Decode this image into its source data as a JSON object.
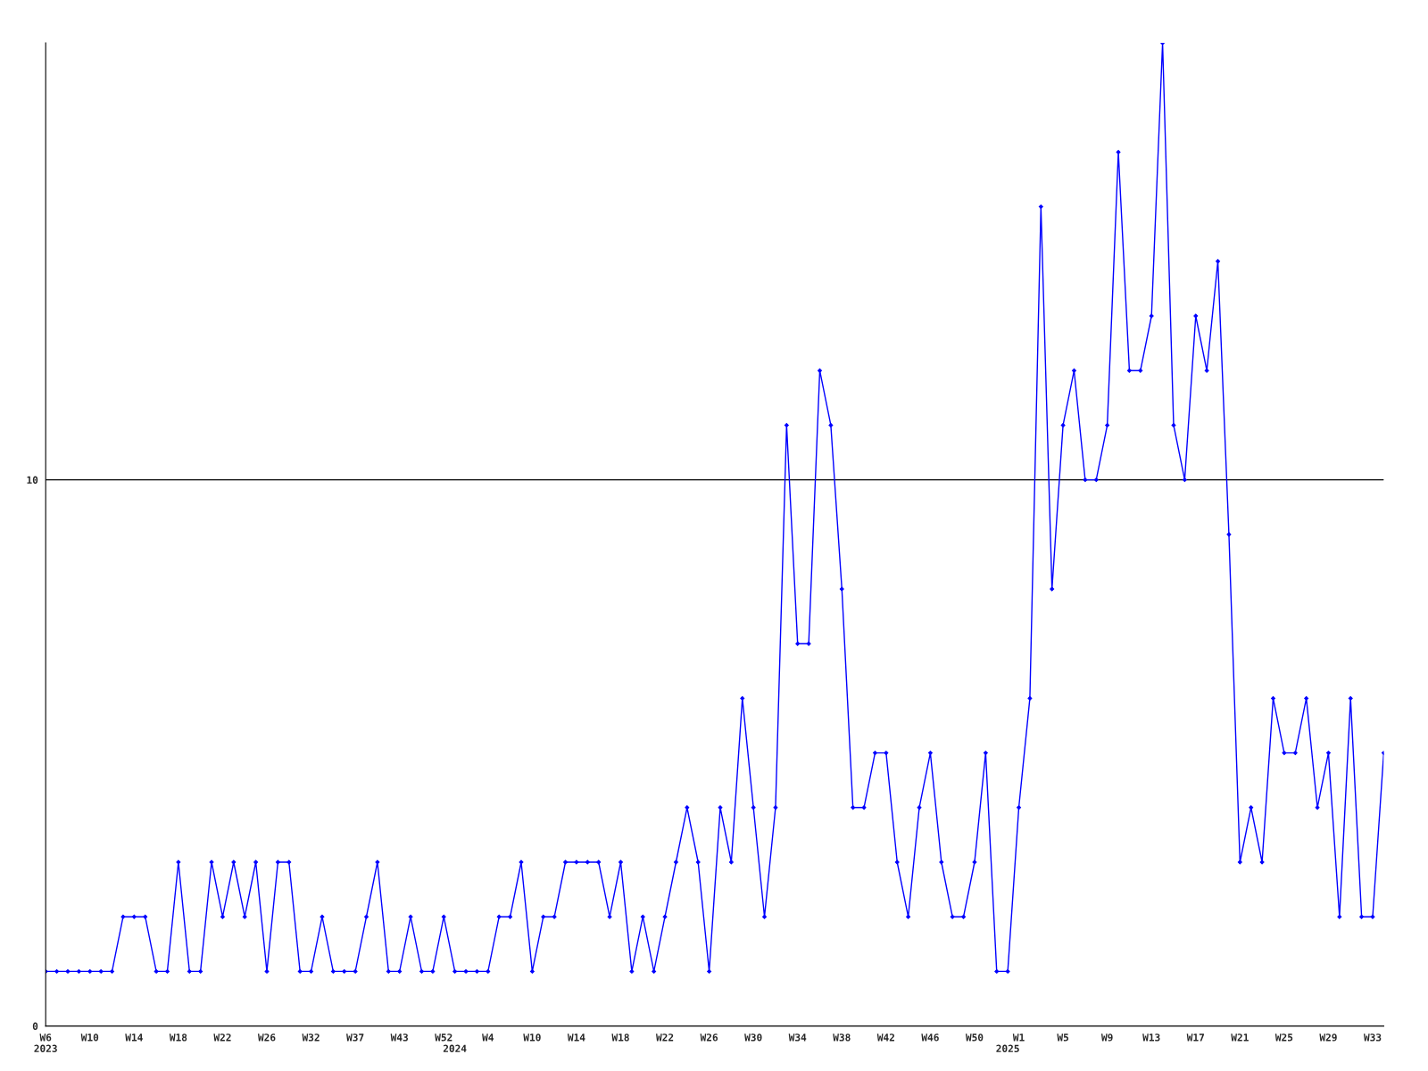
{
  "chart_data": {
    "type": "line",
    "categories": [
      "W6\n2023",
      null,
      null,
      null,
      "W10",
      null,
      null,
      null,
      "W14",
      null,
      null,
      null,
      "W18",
      null,
      null,
      null,
      "W22",
      null,
      null,
      null,
      "W26",
      null,
      null,
      null,
      "W32",
      null,
      null,
      null,
      "W37",
      null,
      null,
      null,
      "W43",
      null,
      null,
      null,
      "W52",
      "\n2024",
      null,
      null,
      "W4",
      null,
      null,
      null,
      "W10",
      null,
      null,
      null,
      "W14",
      null,
      null,
      null,
      "W18",
      null,
      null,
      null,
      "W22",
      null,
      null,
      null,
      "W26",
      null,
      null,
      null,
      "W30",
      null,
      null,
      null,
      "W34",
      null,
      null,
      null,
      "W38",
      null,
      null,
      null,
      "W42",
      null,
      null,
      null,
      "W46",
      null,
      null,
      null,
      "W50",
      null,
      null,
      "\n2025",
      "W1",
      null,
      null,
      null,
      "W5",
      null,
      null,
      null,
      "W9",
      null,
      null,
      null,
      "W13",
      null,
      null,
      null,
      "W17",
      null,
      null,
      null,
      "W21",
      null,
      null,
      null,
      "W25",
      null,
      null,
      null,
      "W29",
      null,
      null,
      null,
      "W33",
      null
    ],
    "series": [
      {
        "color": "#0000ff",
        "values": [
          1,
          1,
          1,
          1,
          1,
          1,
          1,
          2,
          2,
          2,
          1,
          1,
          3,
          1,
          1,
          3,
          2,
          3,
          2,
          3,
          1,
          3,
          3,
          1,
          1,
          2,
          1,
          1,
          1,
          2,
          3,
          1,
          1,
          2,
          1,
          1,
          2,
          1,
          1,
          1,
          1,
          2,
          2,
          3,
          1,
          2,
          2,
          3,
          3,
          3,
          3,
          2,
          3,
          1,
          2,
          1,
          2,
          3,
          4,
          3,
          1,
          4,
          3,
          6,
          4,
          2,
          4,
          11,
          7,
          7,
          12,
          11,
          8,
          4,
          4,
          5,
          5,
          3,
          2,
          4,
          5,
          3,
          2,
          2,
          3,
          5,
          1,
          1,
          4,
          6,
          15,
          8,
          11,
          12,
          10,
          10,
          11,
          16,
          12,
          12,
          13,
          18,
          11,
          10,
          13,
          12,
          14,
          9,
          3,
          4,
          3,
          6,
          5,
          5,
          6,
          4,
          5,
          2,
          6,
          2,
          2,
          5
        ]
      }
    ],
    "ylim": [
      0,
      18
    ],
    "yticks": [
      0,
      10
    ],
    "grid": "y",
    "marker": "diamond",
    "line_style": "solid"
  }
}
